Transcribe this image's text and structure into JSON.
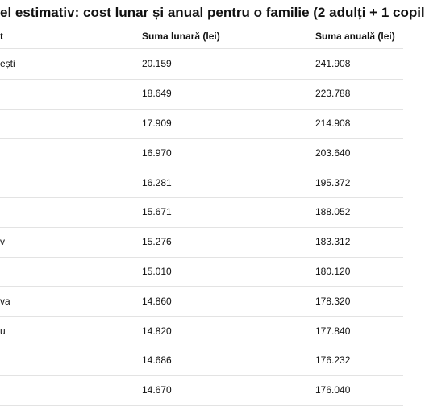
{
  "title": "el estimativ: cost lunar și anual pentru o familie (2 adulți + 1 copil",
  "table": {
    "header": [
      "t",
      "Suma lunară (lei)",
      "Suma anuală (lei)"
    ],
    "rows": [
      [
        "ești",
        "20.159",
        "241.908"
      ],
      [
        null,
        "18.649",
        "223.788"
      ],
      [
        null,
        "17.909",
        "214.908"
      ],
      [
        null,
        "16.970",
        "203.640"
      ],
      [
        null,
        "16.281",
        "195.372"
      ],
      [
        null,
        "15.671",
        "188.052"
      ],
      [
        "v",
        "15.276",
        "183.312"
      ],
      [
        null,
        "15.010",
        "180.120"
      ],
      [
        "va",
        "14.860",
        "178.320"
      ],
      [
        "u",
        "14.820",
        "177.840"
      ],
      [
        null,
        "14.686",
        "176.232"
      ],
      [
        null,
        "14.670",
        "176.040"
      ]
    ]
  }
}
